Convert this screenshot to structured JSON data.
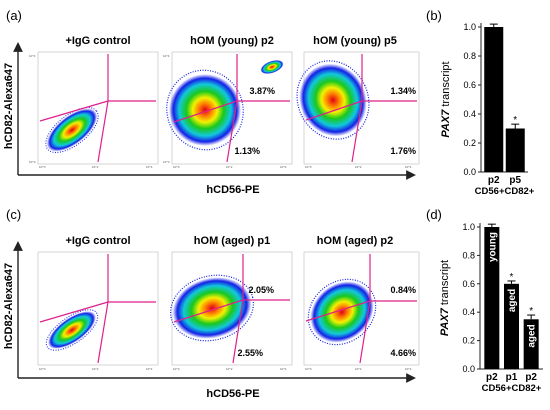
{
  "panel_labels": [
    "(a)",
    "(b)",
    "(c)",
    "(d)"
  ],
  "flow_rows": [
    {
      "ylabel": "hCD82-Alexa647",
      "xlabel": "hCD56-PE",
      "plots": [
        {
          "title": "+IgG control",
          "gate_top": "",
          "gate_bottom": ""
        },
        {
          "title": "hOM (young) p2",
          "gate_top": "3.87%",
          "gate_bottom": "1.13%"
        },
        {
          "title": "hOM (young) p5",
          "gate_top": "1.34%",
          "gate_bottom": "1.76%"
        }
      ]
    },
    {
      "ylabel": "hCD82-Alexa647",
      "xlabel": "hCD56-PE",
      "plots": [
        {
          "title": "+IgG control",
          "gate_top": "",
          "gate_bottom": ""
        },
        {
          "title": "hOM (aged) p1",
          "gate_top": "2.05%",
          "gate_bottom": "2.55%"
        },
        {
          "title": "hOM (aged) p2",
          "gate_top": "0.84%",
          "gate_bottom": "4.66%"
        }
      ]
    }
  ],
  "log_tick_labels": [
    "10^0",
    "10^1",
    "10^2",
    "10^3",
    "10^4"
  ],
  "colors": {
    "gate": "#e0218a",
    "bar": "#000000",
    "axis": "#222222"
  },
  "chart_data": [
    {
      "type": "bar",
      "ylabel_italic": "PAX7",
      "ylabel_rest": " transcript",
      "categories": [
        "p2",
        "p5"
      ],
      "values": [
        1.0,
        0.3
      ],
      "errors": [
        0.02,
        0.03
      ],
      "significance": [
        "",
        "*"
      ],
      "bar_labels": [
        "",
        ""
      ],
      "xlabel": "CD56+CD82+",
      "ylim": [
        0,
        1.0
      ],
      "yticks": [
        "0.0",
        "0.2",
        "0.4",
        "0.6",
        "0.8",
        "1.0"
      ]
    },
    {
      "type": "bar",
      "ylabel_italic": "PAX7",
      "ylabel_rest": " transcript",
      "categories": [
        "p2",
        "p1",
        "p2"
      ],
      "values": [
        1.0,
        0.6,
        0.35
      ],
      "errors": [
        0.02,
        0.02,
        0.03
      ],
      "significance": [
        "",
        "*",
        "*"
      ],
      "bar_labels": [
        "young",
        "aged",
        "aged"
      ],
      "xlabel": "CD56+CD82+",
      "ylim": [
        0,
        1.0
      ],
      "yticks": [
        "0.0",
        "0.2",
        "0.4",
        "0.6",
        "0.8",
        "1.0"
      ]
    }
  ]
}
